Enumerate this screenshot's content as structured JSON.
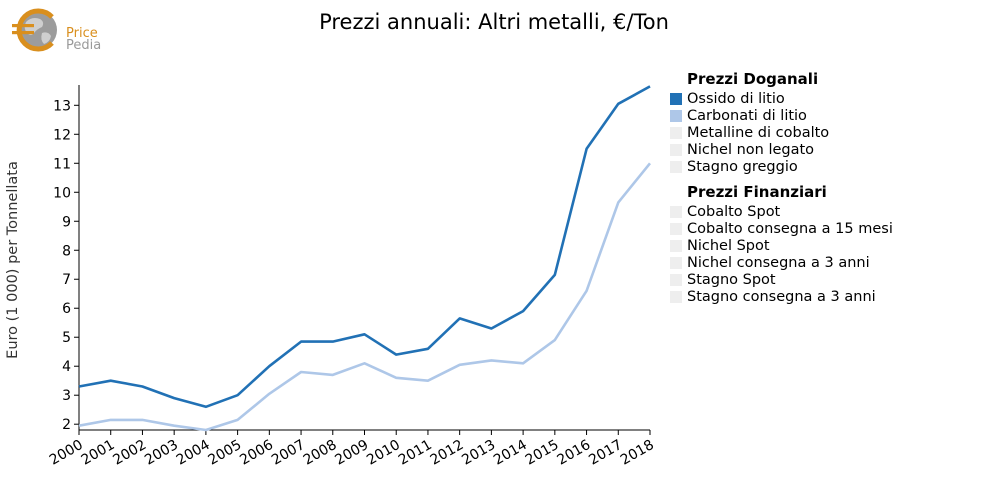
{
  "logo": {
    "line1": "Price",
    "line2": "Pedia"
  },
  "colors": {
    "series1": "#2171b5",
    "series2": "#aec7e8",
    "inactive": "#eeeeee",
    "axis": "#000000",
    "logo_orange": "#d98f1e"
  },
  "legend": {
    "groups": [
      {
        "title": "Prezzi Doganali",
        "items": [
          {
            "label": "Ossido di litio",
            "active": true,
            "color": "#2171b5"
          },
          {
            "label": "Carbonati di litio",
            "active": true,
            "color": "#aec7e8"
          },
          {
            "label": "Metalline di cobalto",
            "active": false,
            "color": "#eeeeee"
          },
          {
            "label": "Nichel non legato",
            "active": false,
            "color": "#eeeeee"
          },
          {
            "label": "Stagno greggio",
            "active": false,
            "color": "#eeeeee"
          }
        ]
      },
      {
        "title": "Prezzi Finanziari",
        "items": [
          {
            "label": "Cobalto Spot",
            "active": false,
            "color": "#eeeeee"
          },
          {
            "label": "Cobalto consegna a 15 mesi",
            "active": false,
            "color": "#eeeeee"
          },
          {
            "label": "Nichel Spot",
            "active": false,
            "color": "#eeeeee"
          },
          {
            "label": "Nichel consegna a 3 anni",
            "active": false,
            "color": "#eeeeee"
          },
          {
            "label": "Stagno Spot",
            "active": false,
            "color": "#eeeeee"
          },
          {
            "label": "Stagno consegna a 3 anni",
            "active": false,
            "color": "#eeeeee"
          }
        ]
      }
    ]
  },
  "chart_data": {
    "type": "line",
    "title": "Prezzi annuali: Altri metalli, €/Ton",
    "xlabel": "",
    "ylabel": "Euro (1 000) per Tonnellata",
    "x": [
      "2000",
      "2001",
      "2002",
      "2003",
      "2004",
      "2005",
      "2006",
      "2007",
      "2008",
      "2009",
      "2010",
      "2011",
      "2012",
      "2013",
      "2014",
      "2015",
      "2016",
      "2017",
      "2018"
    ],
    "yticks": [
      2,
      3,
      4,
      5,
      6,
      7,
      8,
      9,
      10,
      11,
      12,
      13
    ],
    "ylim": [
      1.8,
      13.7
    ],
    "grid": false,
    "legend_position": "right",
    "series": [
      {
        "name": "Ossido di litio",
        "color": "#2171b5",
        "values": [
          3.3,
          3.5,
          3.3,
          2.9,
          2.6,
          3.0,
          4.0,
          4.85,
          4.85,
          5.1,
          4.4,
          4.6,
          5.65,
          5.3,
          5.9,
          7.15,
          11.5,
          13.05,
          13.65
        ]
      },
      {
        "name": "Carbonati di litio",
        "color": "#aec7e8",
        "values": [
          1.95,
          2.15,
          2.15,
          1.95,
          1.8,
          2.15,
          3.05,
          3.8,
          3.7,
          4.1,
          3.6,
          3.5,
          4.05,
          4.2,
          4.1,
          4.9,
          6.6,
          9.65,
          11.0
        ]
      }
    ]
  }
}
